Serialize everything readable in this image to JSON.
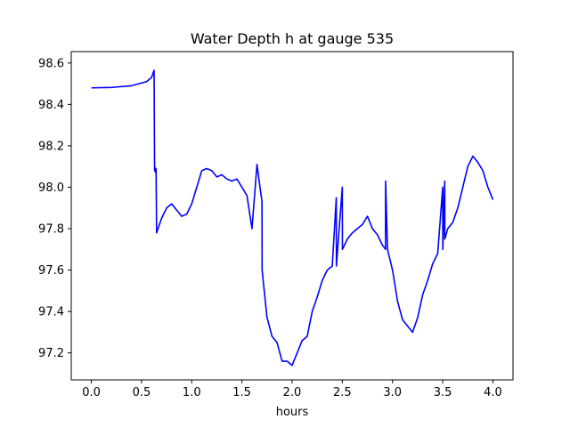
{
  "chart_data": {
    "type": "line",
    "title": "Water Depth h at gauge 535",
    "xlabel": "hours",
    "ylabel": "",
    "xlim": [
      -0.2,
      4.2
    ],
    "ylim": [
      97.07,
      98.655
    ],
    "xticks": [
      0.0,
      0.5,
      1.0,
      1.5,
      2.0,
      2.5,
      3.0,
      3.5,
      4.0
    ],
    "xtick_labels": [
      "0.0",
      "0.5",
      "1.0",
      "1.5",
      "2.0",
      "2.5",
      "3.0",
      "3.5",
      "4.0"
    ],
    "yticks": [
      97.2,
      97.4,
      97.6,
      97.8,
      98.0,
      98.2,
      98.4,
      98.6
    ],
    "ytick_labels": [
      "97.2",
      "97.4",
      "97.6",
      "97.8",
      "98.0",
      "98.2",
      "98.4",
      "98.6"
    ],
    "grid": false,
    "series": [
      {
        "color": "#0000ff",
        "x": [
          0.0,
          0.2,
          0.4,
          0.55,
          0.6,
          0.625,
          0.63,
          0.632,
          0.64,
          0.645,
          0.65,
          0.7,
          0.75,
          0.8,
          0.85,
          0.9,
          0.95,
          1.0,
          1.05,
          1.1,
          1.15,
          1.2,
          1.25,
          1.3,
          1.35,
          1.4,
          1.45,
          1.5,
          1.55,
          1.6,
          1.65,
          1.68,
          1.7,
          1.701,
          1.75,
          1.751,
          1.8,
          1.85,
          1.9,
          1.95,
          2.0,
          2.05,
          2.1,
          2.15,
          2.2,
          2.25,
          2.3,
          2.35,
          2.4,
          2.44,
          2.441,
          2.5,
          2.501,
          2.55,
          2.6,
          2.65,
          2.7,
          2.75,
          2.8,
          2.85,
          2.9,
          2.93,
          2.931,
          2.95,
          3.0,
          3.05,
          3.1,
          3.15,
          3.2,
          3.25,
          3.3,
          3.35,
          3.4,
          3.45,
          3.5,
          3.501,
          3.52,
          3.521,
          3.55,
          3.6,
          3.65,
          3.7,
          3.75,
          3.8,
          3.85,
          3.9,
          3.95,
          4.0
        ],
        "y": [
          98.48,
          98.482,
          98.49,
          98.51,
          98.53,
          98.565,
          98.08,
          98.1,
          98.07,
          98.09,
          97.78,
          97.85,
          97.9,
          97.92,
          97.89,
          97.86,
          97.87,
          97.92,
          98.0,
          98.08,
          98.09,
          98.08,
          98.05,
          98.06,
          98.04,
          98.03,
          98.04,
          98.0,
          97.96,
          97.8,
          98.11,
          98.0,
          97.93,
          97.6,
          97.37,
          97.37,
          97.28,
          97.25,
          97.16,
          97.16,
          97.14,
          97.2,
          97.26,
          97.28,
          97.4,
          97.47,
          97.55,
          97.6,
          97.62,
          97.95,
          97.62,
          98.0,
          97.7,
          97.75,
          97.78,
          97.8,
          97.82,
          97.86,
          97.8,
          97.77,
          97.72,
          97.7,
          98.03,
          97.7,
          97.6,
          97.45,
          97.36,
          97.33,
          97.3,
          97.37,
          97.48,
          97.55,
          97.63,
          97.68,
          98.0,
          97.7,
          98.03,
          97.75,
          97.8,
          97.83,
          97.9,
          98.0,
          98.1,
          98.15,
          98.12,
          98.08,
          98.0,
          97.94
        ]
      }
    ]
  }
}
